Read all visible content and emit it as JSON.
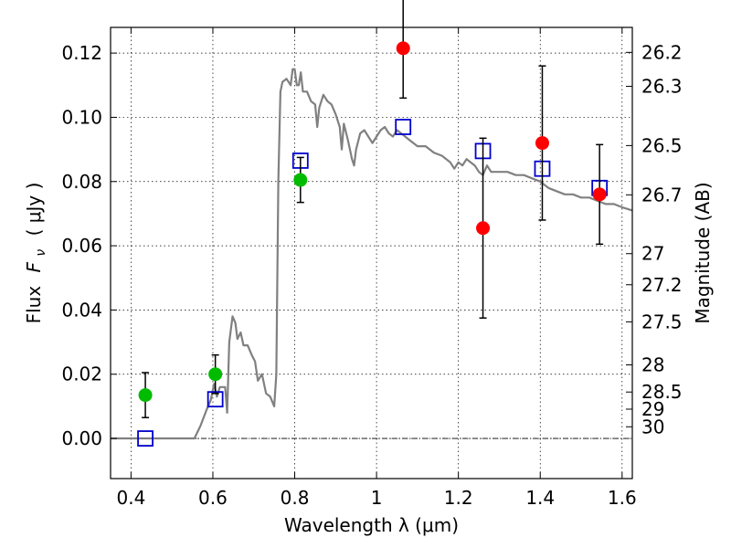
{
  "chart_data": {
    "type": "scatter",
    "xlabel": "Wavelength  λ (μm)",
    "ylabel_prefix": "Flux",
    "ylabel_symbol": "F",
    "ylabel_subscript": "ν",
    "ylabel_units": "( μJy )",
    "right_ylabel": "Magnitude (AB)",
    "xlim": [
      0.35,
      1.625
    ],
    "ylim": [
      -0.0125,
      0.128
    ],
    "grid": true,
    "x_ticks": [
      {
        "value": 0.4,
        "label": "0.4"
      },
      {
        "value": 0.6,
        "label": "0.6"
      },
      {
        "value": 0.8,
        "label": "0.8"
      },
      {
        "value": 1.0,
        "label": "1"
      },
      {
        "value": 1.2,
        "label": "1.2"
      },
      {
        "value": 1.4,
        "label": "1.4"
      },
      {
        "value": 1.6,
        "label": "1.6"
      }
    ],
    "y_ticks": [
      {
        "value": 0.0,
        "label": "0.00"
      },
      {
        "value": 0.02,
        "label": "0.02"
      },
      {
        "value": 0.04,
        "label": "0.04"
      },
      {
        "value": 0.06,
        "label": "0.06"
      },
      {
        "value": 0.08,
        "label": "0.08"
      },
      {
        "value": 0.1,
        "label": "0.10"
      },
      {
        "value": 0.12,
        "label": "0.12"
      }
    ],
    "right_ticks": [
      {
        "value": 26.2,
        "label": "26.2"
      },
      {
        "value": 26.3,
        "label": "26.3"
      },
      {
        "value": 26.5,
        "label": "26.5"
      },
      {
        "value": 26.7,
        "label": "26.7"
      },
      {
        "value": 27.0,
        "label": "27"
      },
      {
        "value": 27.2,
        "label": "27.2"
      },
      {
        "value": 27.5,
        "label": "27.5"
      },
      {
        "value": 28.0,
        "label": "28"
      },
      {
        "value": 28.5,
        "label": "28.5"
      },
      {
        "value": 29.0,
        "label": "29"
      },
      {
        "value": 30.0,
        "label": "30"
      }
    ],
    "series": [
      {
        "name": "model_sed",
        "kind": "line",
        "color": "#808080",
        "points": [
          [
            0.35,
            0.0
          ],
          [
            0.555,
            0.0
          ],
          [
            0.57,
            0.004
          ],
          [
            0.585,
            0.009
          ],
          [
            0.595,
            0.012
          ],
          [
            0.603,
            0.017
          ],
          [
            0.61,
            0.013
          ],
          [
            0.617,
            0.016
          ],
          [
            0.63,
            0.016
          ],
          [
            0.635,
            0.008
          ],
          [
            0.64,
            0.03
          ],
          [
            0.648,
            0.038
          ],
          [
            0.655,
            0.036
          ],
          [
            0.66,
            0.031
          ],
          [
            0.668,
            0.033
          ],
          [
            0.675,
            0.029
          ],
          [
            0.685,
            0.029
          ],
          [
            0.695,
            0.026
          ],
          [
            0.703,
            0.024
          ],
          [
            0.71,
            0.018
          ],
          [
            0.72,
            0.02
          ],
          [
            0.73,
            0.014
          ],
          [
            0.74,
            0.013
          ],
          [
            0.75,
            0.01
          ],
          [
            0.755,
            0.02
          ],
          [
            0.76,
            0.08
          ],
          [
            0.765,
            0.108
          ],
          [
            0.77,
            0.111
          ],
          [
            0.78,
            0.112
          ],
          [
            0.79,
            0.11
          ],
          [
            0.795,
            0.115
          ],
          [
            0.8,
            0.115
          ],
          [
            0.805,
            0.11
          ],
          [
            0.81,
            0.11
          ],
          [
            0.815,
            0.114
          ],
          [
            0.82,
            0.108
          ],
          [
            0.83,
            0.108
          ],
          [
            0.84,
            0.105
          ],
          [
            0.85,
            0.104
          ],
          [
            0.855,
            0.097
          ],
          [
            0.86,
            0.103
          ],
          [
            0.87,
            0.107
          ],
          [
            0.88,
            0.105
          ],
          [
            0.89,
            0.104
          ],
          [
            0.9,
            0.101
          ],
          [
            0.91,
            0.097
          ],
          [
            0.915,
            0.09
          ],
          [
            0.92,
            0.098
          ],
          [
            0.93,
            0.093
          ],
          [
            0.94,
            0.087
          ],
          [
            0.945,
            0.085
          ],
          [
            0.95,
            0.09
          ],
          [
            0.96,
            0.095
          ],
          [
            0.97,
            0.096
          ],
          [
            0.98,
            0.094
          ],
          [
            0.99,
            0.092
          ],
          [
            1.0,
            0.094
          ],
          [
            1.01,
            0.096
          ],
          [
            1.02,
            0.097
          ],
          [
            1.03,
            0.095
          ],
          [
            1.04,
            0.094
          ],
          [
            1.05,
            0.096
          ],
          [
            1.06,
            0.095
          ],
          [
            1.07,
            0.094
          ],
          [
            1.08,
            0.093
          ],
          [
            1.1,
            0.091
          ],
          [
            1.12,
            0.091
          ],
          [
            1.14,
            0.089
          ],
          [
            1.16,
            0.088
          ],
          [
            1.18,
            0.086
          ],
          [
            1.19,
            0.084
          ],
          [
            1.2,
            0.086
          ],
          [
            1.21,
            0.085
          ],
          [
            1.22,
            0.087
          ],
          [
            1.23,
            0.086
          ],
          [
            1.24,
            0.085
          ],
          [
            1.25,
            0.083
          ],
          [
            1.26,
            0.082
          ],
          [
            1.27,
            0.085
          ],
          [
            1.28,
            0.083
          ],
          [
            1.3,
            0.083
          ],
          [
            1.32,
            0.083
          ],
          [
            1.34,
            0.082
          ],
          [
            1.36,
            0.082
          ],
          [
            1.38,
            0.081
          ],
          [
            1.4,
            0.08
          ],
          [
            1.42,
            0.078
          ],
          [
            1.44,
            0.077
          ],
          [
            1.46,
            0.076
          ],
          [
            1.48,
            0.076
          ],
          [
            1.5,
            0.075
          ],
          [
            1.52,
            0.075
          ],
          [
            1.54,
            0.074
          ],
          [
            1.56,
            0.073
          ],
          [
            1.58,
            0.073
          ],
          [
            1.6,
            0.072
          ],
          [
            1.625,
            0.071
          ]
        ]
      },
      {
        "name": "green_photometry",
        "kind": "points",
        "color": "#00bb00",
        "points": [
          {
            "x": 0.435,
            "y": 0.0135,
            "err": 0.007
          },
          {
            "x": 0.606,
            "y": 0.02,
            "err": 0.006
          },
          {
            "x": 0.814,
            "y": 0.0805,
            "err": 0.007
          }
        ]
      },
      {
        "name": "red_photometry",
        "kind": "points",
        "color": "#ff0000",
        "points": [
          {
            "x": 1.065,
            "y": 0.1215,
            "err": 0.0155
          },
          {
            "x": 1.26,
            "y": 0.0655,
            "err": 0.028
          },
          {
            "x": 1.405,
            "y": 0.092,
            "err": 0.024
          },
          {
            "x": 1.545,
            "y": 0.076,
            "err": 0.0155
          }
        ]
      },
      {
        "name": "model_bandpass_flux",
        "kind": "squares",
        "color": "#0000cc",
        "points": [
          {
            "x": 0.435,
            "y": 0.0
          },
          {
            "x": 0.606,
            "y": 0.0122
          },
          {
            "x": 0.814,
            "y": 0.0865
          },
          {
            "x": 1.065,
            "y": 0.097
          },
          {
            "x": 1.26,
            "y": 0.0895
          },
          {
            "x": 1.405,
            "y": 0.084
          },
          {
            "x": 1.545,
            "y": 0.078
          }
        ]
      }
    ]
  }
}
